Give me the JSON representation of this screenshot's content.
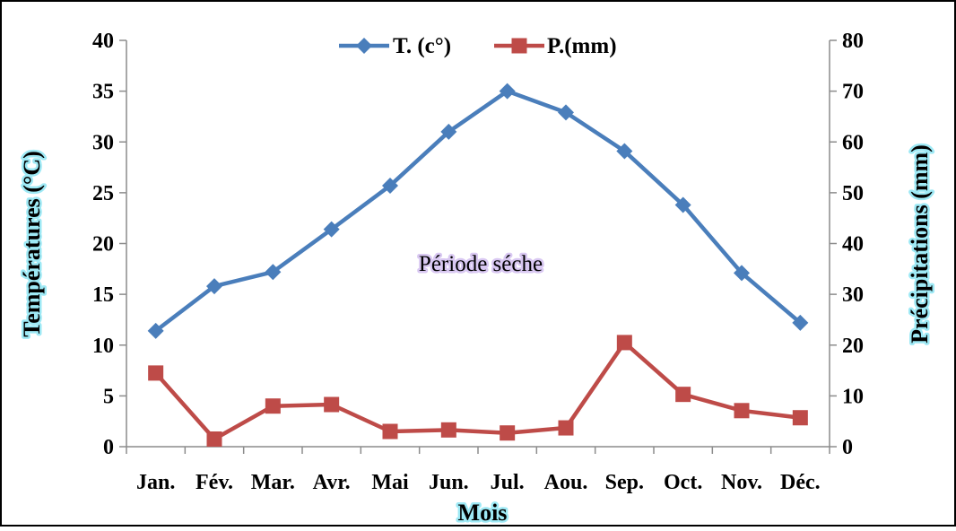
{
  "chart_data": {
    "type": "line",
    "categories": [
      "Jan.",
      "Fév.",
      "Mar.",
      "Avr.",
      "Mai",
      "Jun.",
      "Jul.",
      "Aou.",
      "Sep.",
      "Oct.",
      "Nov.",
      "Déc."
    ],
    "xlabel": "Mois",
    "ylabel": "Températures (°C)",
    "y2label": "Précipitations (mm)",
    "ylim": [
      0,
      40
    ],
    "y2lim": [
      0,
      80
    ],
    "yticks": [
      0,
      5,
      10,
      15,
      20,
      25,
      30,
      35,
      40
    ],
    "y2ticks": [
      0,
      10,
      20,
      30,
      40,
      50,
      60,
      70,
      80
    ],
    "grid": false,
    "legend_position": "top-center",
    "annotation": "Période séche",
    "series": [
      {
        "name": "T. (c°)",
        "axis": "left",
        "color": "#4a7ebb",
        "marker": "diamond",
        "values": [
          11.4,
          15.8,
          17.2,
          21.4,
          25.7,
          31.0,
          35.0,
          32.9,
          29.1,
          23.8,
          17.1,
          12.2
        ]
      },
      {
        "name": "P.(mm)",
        "axis": "right",
        "color": "#be4b48",
        "marker": "square",
        "values": [
          14.5,
          1.5,
          8.0,
          8.3,
          3.0,
          3.3,
          2.7,
          3.7,
          20.5,
          10.3,
          7.1,
          5.7
        ]
      }
    ]
  }
}
